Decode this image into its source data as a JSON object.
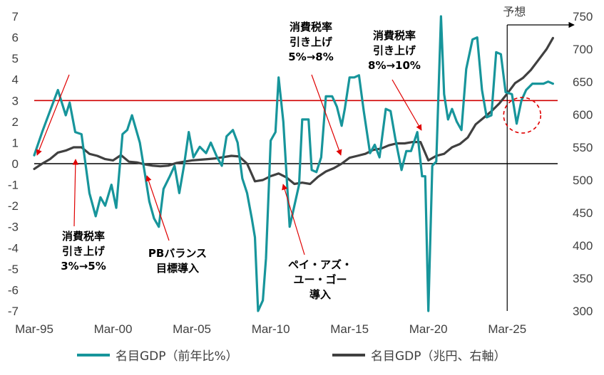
{
  "chart_data": {
    "type": "line",
    "forecast_label": "予想",
    "x_ticks": [
      "Mar-95",
      "Mar-00",
      "Mar-05",
      "Mar-10",
      "Mar-15",
      "Mar-20",
      "Mar-25"
    ],
    "y_left": {
      "ticks": [
        "7",
        "6",
        "5",
        "4",
        "3",
        "2",
        "1",
        "0",
        "-1",
        "-2",
        "-3",
        "-4",
        "-5",
        "-6",
        "-7"
      ],
      "ylim": [
        -7,
        7
      ]
    },
    "y_right": {
      "ticks": [
        "750",
        "700",
        "650",
        "600",
        "550",
        "500",
        "450",
        "400",
        "350",
        "300"
      ],
      "ylim": [
        300,
        750
      ]
    },
    "reference_line_left": 3,
    "forecast_start": 2025.0,
    "series": [
      {
        "name": "名目GDP（前年比%）",
        "axis": "left",
        "color": "#17959b",
        "x": [
          1995.0,
          1995.5,
          1996.0,
          1996.5,
          1997.0,
          1997.25,
          1997.6,
          1998.0,
          1998.5,
          1998.9,
          1999.2,
          1999.5,
          1999.9,
          2000.2,
          2000.6,
          2000.9,
          2001.2,
          2001.7,
          2002.0,
          2002.3,
          2002.6,
          2002.9,
          2003.2,
          2003.6,
          2003.9,
          2004.2,
          2004.5,
          2004.8,
          2005.1,
          2005.5,
          2005.9,
          2006.2,
          2006.6,
          2006.9,
          2007.2,
          2007.6,
          2007.9,
          2008.2,
          2008.5,
          2008.8,
          2009.0,
          2009.2,
          2009.5,
          2009.7,
          2010.0,
          2010.3,
          2010.5,
          2010.8,
          2011.2,
          2011.5,
          2011.8,
          2012.0,
          2012.4,
          2012.6,
          2012.9,
          2013.2,
          2013.5,
          2013.9,
          2014.2,
          2014.5,
          2014.7,
          2015.0,
          2015.3,
          2015.6,
          2015.9,
          2016.3,
          2016.6,
          2016.9,
          2017.3,
          2017.6,
          2017.9,
          2018.3,
          2018.6,
          2018.9,
          2019.3,
          2019.6,
          2019.8,
          2020.0,
          2020.25,
          2020.5,
          2020.8,
          2021.0,
          2021.25,
          2021.5,
          2021.8,
          2022.1,
          2022.4,
          2022.8,
          2023.1,
          2023.4,
          2023.7,
          2024.0,
          2024.3,
          2024.6,
          2024.9,
          2025.3,
          2025.6,
          2025.9,
          2026.2,
          2026.6,
          2026.9,
          2027.3,
          2027.6,
          2027.9
        ],
        "values": [
          0.4,
          1.5,
          2.5,
          3.5,
          2.3,
          2.9,
          1.5,
          1.4,
          -1.4,
          -2.5,
          -1.6,
          -2.0,
          -1.0,
          -2.1,
          1.4,
          1.6,
          2.3,
          1.0,
          -0.4,
          -1.8,
          -2.6,
          -3.0,
          -1.2,
          -0.6,
          -0.1,
          -1.4,
          -0.1,
          1.5,
          0.3,
          0.8,
          0.5,
          1.0,
          0.3,
          -0.1,
          1.3,
          1.6,
          1.0,
          -0.7,
          -1.4,
          -2.6,
          -3.5,
          -7.0,
          -6.5,
          -4.5,
          1.1,
          1.5,
          4.1,
          2.0,
          -3.0,
          -2.0,
          -1.0,
          2.1,
          2.1,
          -0.3,
          -0.4,
          0.3,
          3.2,
          3.2,
          2.7,
          1.8,
          2.6,
          4.1,
          4.1,
          4.2,
          2.5,
          0.5,
          0.9,
          0.3,
          2.6,
          2.5,
          1.2,
          -0.3,
          0.6,
          0.6,
          1.5,
          -0.6,
          -0.6,
          -7.0,
          -0.1,
          0.1,
          7.0,
          3.3,
          2.1,
          2.6,
          2.0,
          1.6,
          4.5,
          5.9,
          6.0,
          3.5,
          2.2,
          2.3,
          5.3,
          5.2,
          3.4,
          3.3,
          1.9,
          3.0,
          3.5,
          3.8,
          3.8,
          3.8,
          3.9,
          3.8
        ]
      },
      {
        "name": "名目GDP（兆円、右軸）",
        "axis": "right",
        "color": "#404040",
        "x": [
          1995.0,
          1995.5,
          1996.0,
          1996.5,
          1997.0,
          1997.5,
          1998.0,
          1998.5,
          1999.0,
          1999.5,
          2000.0,
          2000.5,
          2001.0,
          2001.5,
          2002.0,
          2002.5,
          2003.0,
          2003.5,
          2004.0,
          2004.5,
          2005.0,
          2005.5,
          2006.0,
          2006.5,
          2007.0,
          2007.5,
          2008.0,
          2008.5,
          2009.0,
          2009.5,
          2010.0,
          2010.5,
          2011.0,
          2011.5,
          2012.0,
          2012.5,
          2013.0,
          2013.5,
          2014.0,
          2014.5,
          2015.0,
          2015.5,
          2016.0,
          2016.5,
          2017.0,
          2017.5,
          2018.0,
          2018.5,
          2019.0,
          2019.5,
          2020.0,
          2020.5,
          2021.0,
          2021.5,
          2022.0,
          2022.5,
          2023.0,
          2023.5,
          2024.0,
          2024.5,
          2025.0,
          2025.5,
          2026.0,
          2026.5,
          2027.0,
          2027.5,
          2027.9
        ],
        "values": [
          517,
          525,
          532,
          542,
          545,
          550,
          550,
          540,
          537,
          532,
          530,
          538,
          528,
          527,
          524,
          522,
          521,
          522,
          526,
          528,
          530,
          531,
          532,
          533,
          535,
          537,
          536,
          525,
          498,
          500,
          506,
          510,
          504,
          494,
          496,
          494,
          505,
          513,
          518,
          525,
          534,
          537,
          540,
          546,
          548,
          553,
          556,
          556,
          558,
          558,
          530,
          537,
          540,
          550,
          555,
          565,
          585,
          595,
          605,
          617,
          632,
          648,
          656,
          668,
          684,
          700,
          717
        ]
      }
    ]
  },
  "annotations": {
    "hike_3_to_5": [
      "消費税率",
      "引き上げ",
      "3%→5%"
    ],
    "pb_target": [
      "PBバランス",
      "目標導入"
    ],
    "pay_as_you_go": [
      "ペイ・アズ・",
      "ユー・ゴー",
      "導入"
    ],
    "hike_5_to_8": [
      "消費税率",
      "引き上げ",
      "5%→8%"
    ],
    "hike_8_to_10": [
      "消費税率",
      "引き上げ",
      "8%→10%"
    ]
  },
  "legend": {
    "growth": "名目GDP（前年比%）",
    "level": "名目GDP（兆円、右軸）"
  },
  "colors": {
    "growth_line": "#17959b",
    "level_line": "#404040",
    "reference_line": "#d00000",
    "arrow": "#e00000",
    "forecast_circle": "#e00000"
  }
}
